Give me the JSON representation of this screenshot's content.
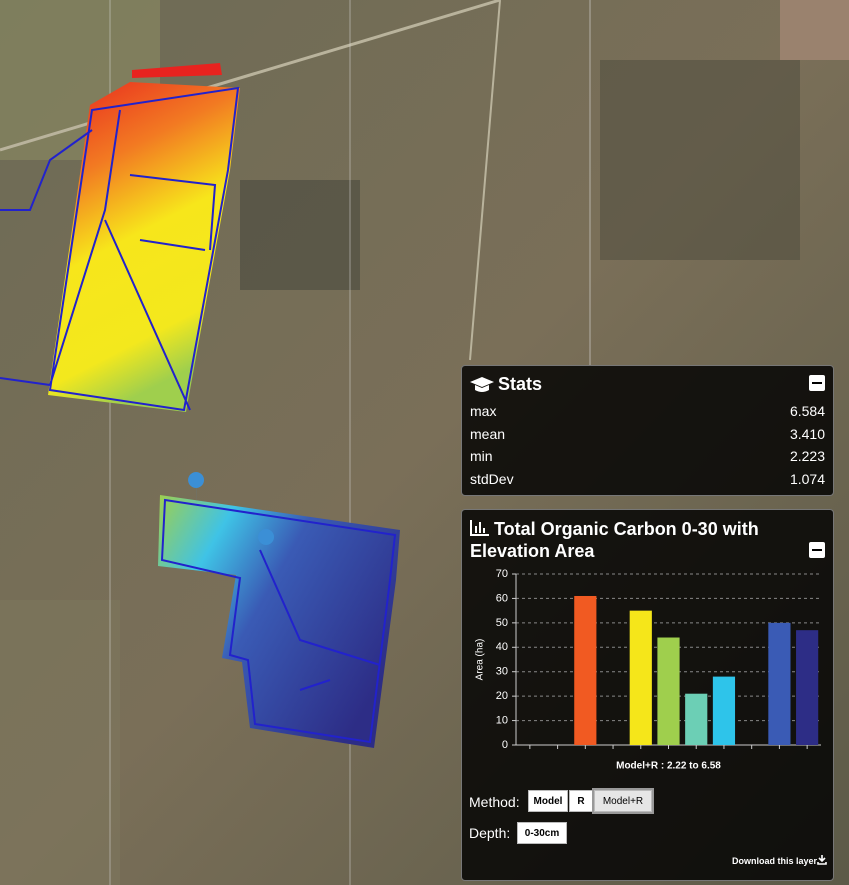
{
  "stats": {
    "title": "Stats",
    "rows": [
      [
        "max",
        "6.584"
      ],
      [
        "mean",
        "3.410"
      ],
      [
        "min",
        "2.223"
      ],
      [
        "stdDev",
        "1.074"
      ]
    ]
  },
  "layer_panel": {
    "title": "Total Organic Carbon 0-30 with Elevation Area",
    "method_label": "Method:",
    "methods": [
      "Model",
      "R",
      "Model+R"
    ],
    "selected_method": "Model+R",
    "depth_label": "Depth:",
    "depths": [
      "0-30cm"
    ],
    "download": "Download this layer"
  },
  "chart_data": {
    "type": "bar",
    "ylabel": "Area (ha)",
    "xlabel": "Model+R : 2.22 to 6.58",
    "categories": [
      null,
      null,
      null,
      null,
      null,
      null,
      null,
      null,
      null,
      null,
      null
    ],
    "values": [
      0,
      0,
      61,
      0,
      55,
      44,
      21,
      28,
      0,
      50,
      47
    ],
    "colors": [
      "#b3141b",
      "#e3221e",
      "#f15a22",
      "#f99b1c",
      "#f5e61a",
      "#9fcf4d",
      "#6ccfb5",
      "#2ec4ea",
      "#4e8fd8",
      "#3a5bb5",
      "#2d2d86"
    ],
    "ylim": [
      0,
      70
    ],
    "yticks": [
      0,
      10,
      20,
      30,
      40,
      50,
      60,
      70
    ],
    "grid": true
  }
}
